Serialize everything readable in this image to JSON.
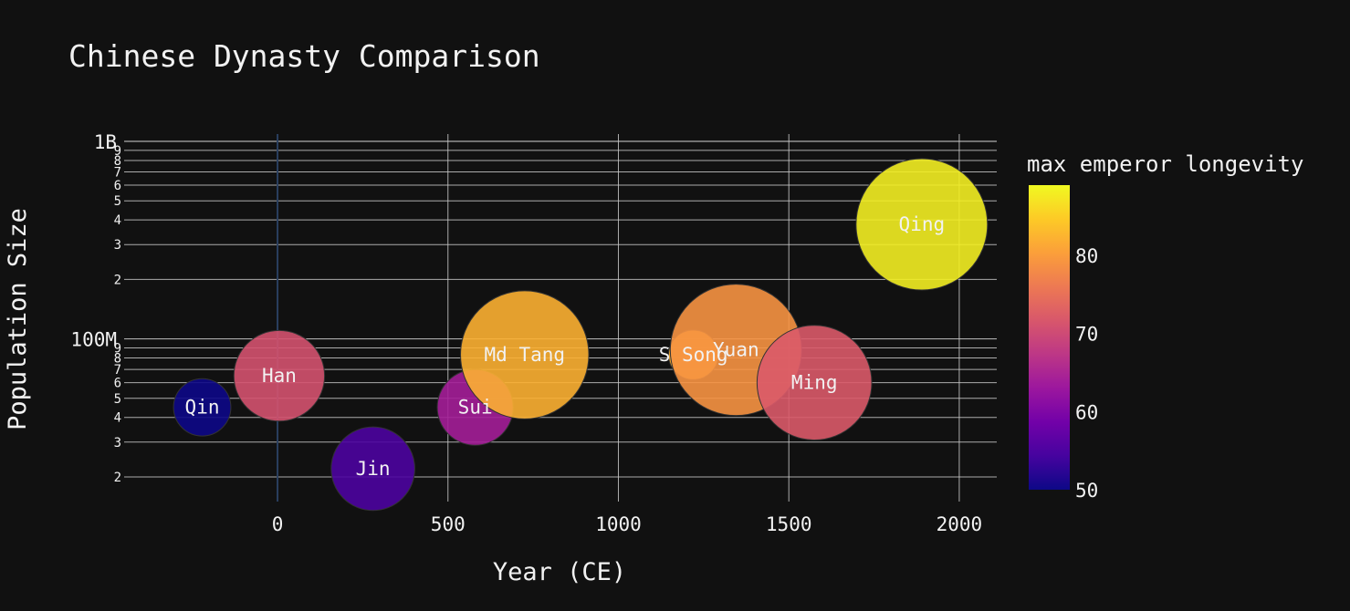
{
  "chart_data": {
    "type": "scatter",
    "title": "Chinese Dynasty Comparison",
    "xlabel": "Year (CE)",
    "ylabel": "Population Size",
    "x_ticks": [
      {
        "value": 0,
        "label": "0"
      },
      {
        "value": 500,
        "label": "500"
      },
      {
        "value": 1000,
        "label": "1000"
      },
      {
        "value": 1500,
        "label": "1500"
      },
      {
        "value": 2000,
        "label": "2000"
      }
    ],
    "xlim": [
      -450,
      2110
    ],
    "ylim": [
      15000000,
      1000000000
    ],
    "y_scale": "log",
    "y_major_ticks": [
      {
        "value": 100000000,
        "label": "100M"
      },
      {
        "value": 1000000000,
        "label": "1B"
      }
    ],
    "y_minor_ticks": [
      {
        "value": 20000000,
        "label": "2"
      },
      {
        "value": 30000000,
        "label": "3"
      },
      {
        "value": 40000000,
        "label": "4"
      },
      {
        "value": 50000000,
        "label": "5"
      },
      {
        "value": 60000000,
        "label": "6"
      },
      {
        "value": 70000000,
        "label": "7"
      },
      {
        "value": 80000000,
        "label": "8"
      },
      {
        "value": 90000000,
        "label": "9"
      },
      {
        "value": 200000000,
        "label": "2"
      },
      {
        "value": 300000000,
        "label": "3"
      },
      {
        "value": 400000000,
        "label": "4"
      },
      {
        "value": 500000000,
        "label": "5"
      },
      {
        "value": 600000000,
        "label": "6"
      },
      {
        "value": 700000000,
        "label": "7"
      },
      {
        "value": 800000000,
        "label": "8"
      },
      {
        "value": 900000000,
        "label": "9"
      }
    ],
    "grid": true,
    "colorbar": {
      "title": "max emperor longevity",
      "min": 50,
      "max": 89,
      "ticks": [
        50,
        60,
        70,
        80
      ],
      "colorscale": [
        "#0d0887",
        "#46039f",
        "#7201a8",
        "#9c179e",
        "#bd3786",
        "#d8576b",
        "#ed7953",
        "#fb9f3a",
        "#fdca26",
        "#f0f921"
      ]
    },
    "points": [
      {
        "name": "Qin",
        "x": -221,
        "y": 45000000,
        "longevity": 50,
        "size": 40
      },
      {
        "name": "Han",
        "x": 5,
        "y": 65000000,
        "longevity": 71,
        "size": 100
      },
      {
        "name": "Jin",
        "x": 280,
        "y": 22000000,
        "longevity": 55,
        "size": 85
      },
      {
        "name": "Sui",
        "x": 580,
        "y": 45000000,
        "longevity": 64,
        "size": 70
      },
      {
        "name": "Md Tang",
        "x": 725,
        "y": 83000000,
        "longevity": 82,
        "size": 200
      },
      {
        "name": "S Song",
        "x": 1220,
        "y": 83000000,
        "longevity": 82,
        "size": 30
      },
      {
        "name": "Yuan",
        "x": 1345,
        "y": 88000000,
        "longevity": 79,
        "size": 210
      },
      {
        "name": "Ming",
        "x": 1575,
        "y": 60000000,
        "longevity": 72,
        "size": 160
      },
      {
        "name": "Qing",
        "x": 1890,
        "y": 380000000,
        "longevity": 88,
        "size": 210
      }
    ]
  }
}
